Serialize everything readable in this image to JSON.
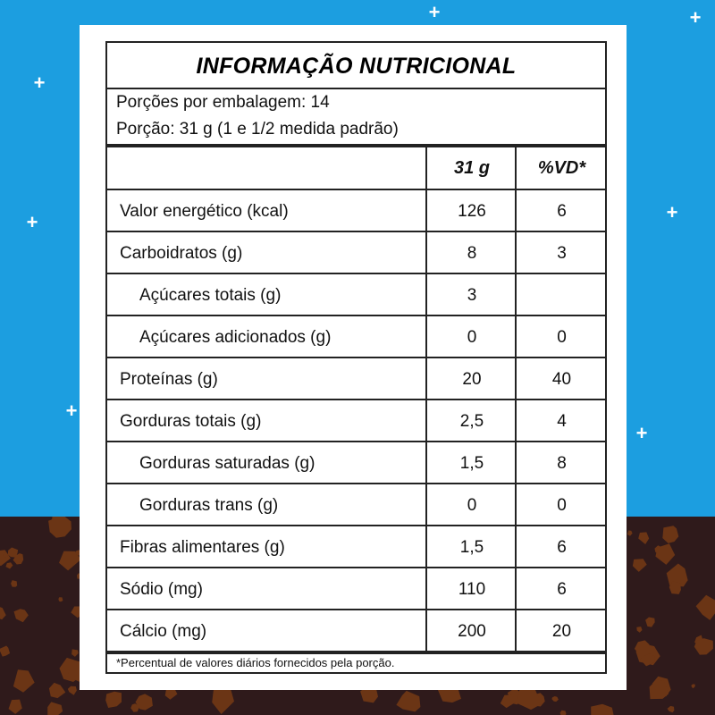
{
  "title": "INFORMAÇÃO NUTRICIONAL",
  "servings_per_package": "Porções por embalagem: 14",
  "serving_size": "Porção: 31 g (1 e 1/2 medida padrão)",
  "columns": {
    "amount": "31 g",
    "dv": "%VD*"
  },
  "rows": [
    {
      "label": "Valor energético (kcal)",
      "amount": "126",
      "dv": "6"
    },
    {
      "label": "Carboidratos (g)",
      "amount": "8",
      "dv": "3"
    },
    {
      "label": "Açúcares totais (g)",
      "amount": "3",
      "dv": ""
    },
    {
      "label": "Açúcares adicionados (g)",
      "amount": "0",
      "dv": "0"
    },
    {
      "label": "Proteínas (g)",
      "amount": "20",
      "dv": "40"
    },
    {
      "label": "Gorduras totais (g)",
      "amount": "2,5",
      "dv": "4"
    },
    {
      "label": "Gorduras saturadas (g)",
      "amount": "1,5",
      "dv": "8"
    },
    {
      "label": "Gorduras trans (g)",
      "amount": "0",
      "dv": "0"
    },
    {
      "label": "Fibras alimentares (g)",
      "amount": "1,5",
      "dv": "6"
    },
    {
      "label": "Sódio (mg)",
      "amount": "110",
      "dv": "6"
    },
    {
      "label": "Cálcio (mg)",
      "amount": "200",
      "dv": "20"
    }
  ],
  "footnote": "*Percentual de valores diários fornecidos pela porção.",
  "colors": {
    "sky": "#1c9ee0",
    "ground": "#2f1a1b",
    "chunk": "#6b3515"
  }
}
